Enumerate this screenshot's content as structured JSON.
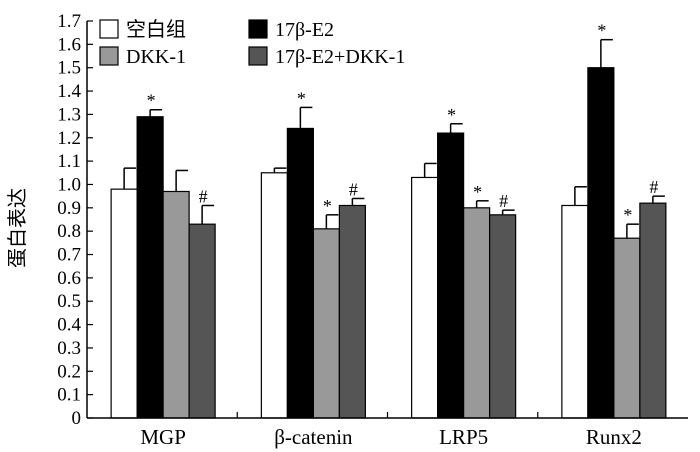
{
  "chart_data": {
    "type": "bar",
    "title": "",
    "xlabel": "",
    "ylabel": "蛋白表达",
    "ylim": [
      0,
      1.7
    ],
    "yticks": [
      "0",
      "0.1",
      "0.2",
      "0.3",
      "0.4",
      "0.5",
      "0.6",
      "0.7",
      "0.8",
      "0.9",
      "1.0",
      "1.1",
      "1.2",
      "1.3",
      "1.4",
      "1.5",
      "1.6",
      "1.7"
    ],
    "categories": [
      "MGP",
      "β-catenin",
      "LRP5",
      "Runx2"
    ],
    "series": [
      {
        "name": "空白组",
        "color": "#ffffff",
        "values": [
          0.98,
          1.05,
          1.03,
          0.91
        ],
        "errors": [
          0.09,
          0.02,
          0.06,
          0.08
        ],
        "marks": [
          "",
          "",
          "",
          ""
        ]
      },
      {
        "name": "17β-E2",
        "color": "#000000",
        "values": [
          1.29,
          1.24,
          1.22,
          1.5
        ],
        "errors": [
          0.03,
          0.09,
          0.04,
          0.12
        ],
        "marks": [
          "*",
          "*",
          "*",
          "*"
        ]
      },
      {
        "name": "DKK-1",
        "color": "#999999",
        "values": [
          0.97,
          0.81,
          0.9,
          0.77
        ],
        "errors": [
          0.09,
          0.06,
          0.03,
          0.06
        ],
        "marks": [
          "",
          "*",
          "*",
          "*"
        ]
      },
      {
        "name": "17β-E2+DKK-1",
        "color": "#555555",
        "values": [
          0.83,
          0.91,
          0.87,
          0.92
        ],
        "errors": [
          0.08,
          0.03,
          0.02,
          0.03
        ],
        "marks": [
          "#",
          "#",
          "#",
          "#"
        ]
      }
    ],
    "legend": {
      "position": "top-left"
    },
    "grid": false
  }
}
